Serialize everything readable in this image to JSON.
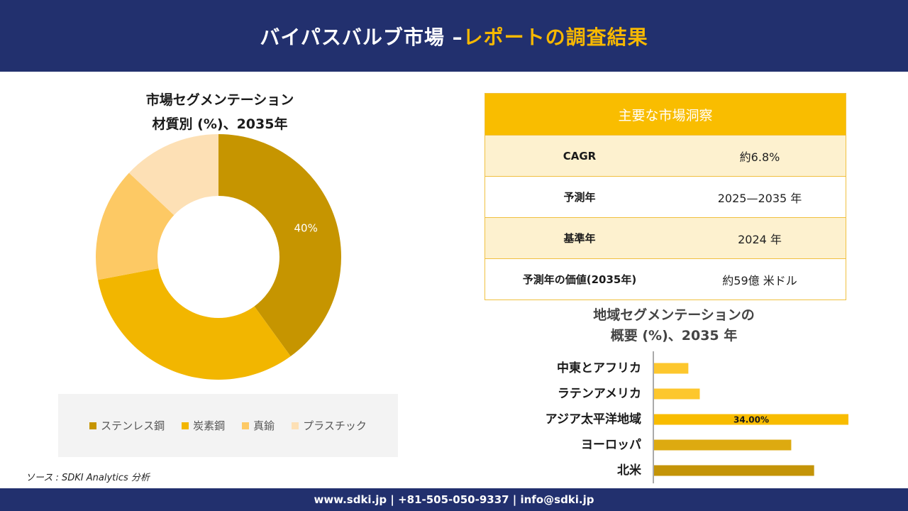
{
  "header": {
    "title_part1": "バイパスバルブ市場 –",
    "title_part2": "レポートの調査結果"
  },
  "donut_title": {
    "line1": "市場セグメンテーション",
    "line2": "材質別 (%)、2035年"
  },
  "key_insights": {
    "header": "主要な市場洞察",
    "rows": [
      {
        "label": "CAGR",
        "value": "約6.8%"
      },
      {
        "label": "予測年",
        "value": "2025—2035 年"
      },
      {
        "label": "基準年",
        "value": "2024 年"
      },
      {
        "label": "予測年の価値(2035年)",
        "value": "約59億 米ドル"
      }
    ]
  },
  "bar_title": {
    "line1": "地域セグメンテーションの",
    "line2": "概要 (%)、2035 年"
  },
  "source": "ソース : SDKI Analytics 分析",
  "footer": "www.sdki.jp | +81-505-050-9337 | info@sdki.jp",
  "chart_data": [
    {
      "type": "pie",
      "variant": "donut",
      "categories": [
        "ステンレス鋼",
        "炭素鋼",
        "真鍮",
        "プラスチック"
      ],
      "values": [
        40,
        32,
        15,
        13
      ],
      "data_labels": [
        "40%",
        "",
        "",
        ""
      ],
      "colors": [
        "#c69500",
        "#f2b600",
        "#fdc964",
        "#fde0b5"
      ],
      "label_color": "#ffffff",
      "legend_position": "bottom"
    },
    {
      "type": "bar",
      "orientation": "horizontal",
      "categories": [
        "中東とアフリカ",
        "ラテンアメリカ",
        "アジア太平洋地域",
        "ヨーロッパ",
        "北米"
      ],
      "values": [
        6.0,
        8.0,
        34.0,
        24.0,
        28.0
      ],
      "data_labels": [
        "",
        "",
        "34.00%",
        "",
        ""
      ],
      "colors": [
        "#fdc72d",
        "#fdc72d",
        "#f8bc00",
        "#ddaa10",
        "#c49408"
      ],
      "grid": false
    }
  ]
}
